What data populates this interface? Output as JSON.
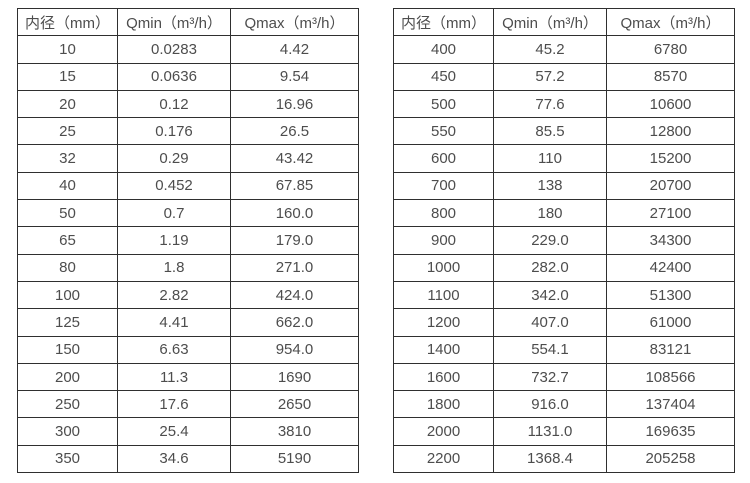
{
  "page": {
    "description": "Flow meter sizing specification tables: inner diameter vs. minimum and maximum flow rate",
    "background_color": "#ffffff",
    "border_color": "#2f2f2f",
    "text_color": "#4d4d4d"
  },
  "tables": [
    {
      "id": "left",
      "type": "table",
      "headers": [
        "内径（mm）",
        "Qmin（m³/h）",
        "Qmax（m³/h）"
      ],
      "rows": [
        [
          "10",
          "0.0283",
          "4.42"
        ],
        [
          "15",
          "0.0636",
          "9.54"
        ],
        [
          "20",
          "0.12",
          "16.96"
        ],
        [
          "25",
          "0.176",
          "26.5"
        ],
        [
          "32",
          "0.29",
          "43.42"
        ],
        [
          "40",
          "0.452",
          "67.85"
        ],
        [
          "50",
          "0.7",
          "160.0"
        ],
        [
          "65",
          "1.19",
          "179.0"
        ],
        [
          "80",
          "1.8",
          "271.0"
        ],
        [
          "100",
          "2.82",
          "424.0"
        ],
        [
          "125",
          "4.41",
          "662.0"
        ],
        [
          "150",
          "6.63",
          "954.0"
        ],
        [
          "200",
          "11.3",
          "1690"
        ],
        [
          "250",
          "17.6",
          "2650"
        ],
        [
          "300",
          "25.4",
          "3810"
        ],
        [
          "350",
          "34.6",
          "5190"
        ]
      ]
    },
    {
      "id": "right",
      "type": "table",
      "headers": [
        "内径（mm）",
        "Qmin（m³/h）",
        "Qmax（m³/h）"
      ],
      "rows": [
        [
          "400",
          "45.2",
          "6780"
        ],
        [
          "450",
          "57.2",
          "8570"
        ],
        [
          "500",
          "77.6",
          "10600"
        ],
        [
          "550",
          "85.5",
          "12800"
        ],
        [
          "600",
          "110",
          "15200"
        ],
        [
          "700",
          "138",
          "20700"
        ],
        [
          "800",
          "180",
          "27100"
        ],
        [
          "900",
          "229.0",
          "34300"
        ],
        [
          "1000",
          "282.0",
          "42400"
        ],
        [
          "1100",
          "342.0",
          "51300"
        ],
        [
          "1200",
          "407.0",
          "61000"
        ],
        [
          "1400",
          "554.1",
          "83121"
        ],
        [
          "1600",
          "732.7",
          "108566"
        ],
        [
          "1800",
          "916.0",
          "137404"
        ],
        [
          "2000",
          "1131.0",
          "169635"
        ],
        [
          "2200",
          "1368.4",
          "205258"
        ]
      ]
    }
  ]
}
